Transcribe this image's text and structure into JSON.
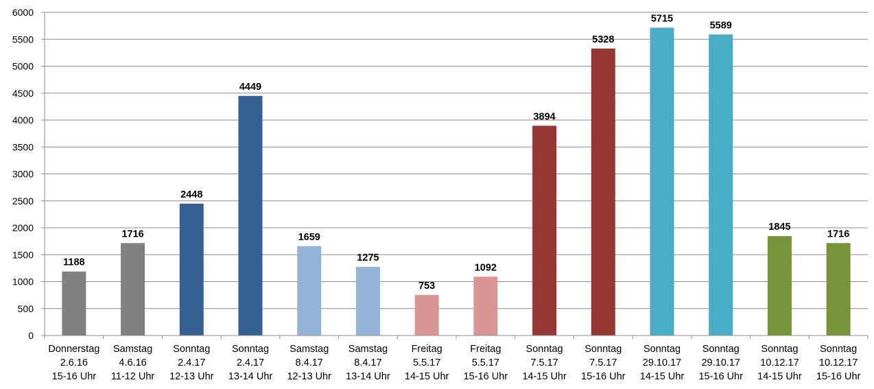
{
  "chart_data": {
    "type": "bar",
    "title": "",
    "xlabel": "",
    "ylabel": "",
    "ylim": [
      0,
      6000
    ],
    "yticks": [
      0,
      500,
      1000,
      1500,
      2000,
      2500,
      3000,
      3500,
      4000,
      4500,
      5000,
      5500,
      6000
    ],
    "grid": true,
    "legend": "none",
    "categories": [
      [
        "Donnerstag",
        "2.6.16",
        "15-16 Uhr"
      ],
      [
        "Samstag",
        "4.6.16",
        "11-12 Uhr"
      ],
      [
        "Sonntag",
        "2.4.17",
        "12-13 Uhr"
      ],
      [
        "Sonntag",
        "2.4.17",
        "13-14 Uhr"
      ],
      [
        "Samstag",
        "8.4.17",
        "12-13 Uhr"
      ],
      [
        "Samstag",
        "8.4.17",
        "13-14 Uhr"
      ],
      [
        "Freitag",
        "5.5.17",
        "14-15 Uhr"
      ],
      [
        "Freitag",
        "5.5.17",
        "15-16 Uhr"
      ],
      [
        "Sonntag",
        "7.5.17",
        "14-15 Uhr"
      ],
      [
        "Sonntag",
        "7.5.17",
        "15-16 Uhr"
      ],
      [
        "Sonntag",
        "29.10.17",
        "14-15 Uhr"
      ],
      [
        "Sonntag",
        "29.10.17",
        "15-16 Uhr"
      ],
      [
        "Sonntag",
        "10.12.17",
        "14-15 Uhr"
      ],
      [
        "Sonntag",
        "10.12.17",
        "15-16 Uhr"
      ]
    ],
    "values": [
      1188,
      1716,
      2448,
      4449,
      1659,
      1275,
      753,
      1092,
      3894,
      5328,
      5715,
      5589,
      1845,
      1716
    ],
    "colors": [
      "#808080",
      "#808080",
      "#376092",
      "#376092",
      "#95B3D7",
      "#95B3D7",
      "#D99694",
      "#D99694",
      "#953735",
      "#953735",
      "#4BACC6",
      "#4BACC6",
      "#77933C",
      "#77933C"
    ],
    "data_labels": true
  }
}
